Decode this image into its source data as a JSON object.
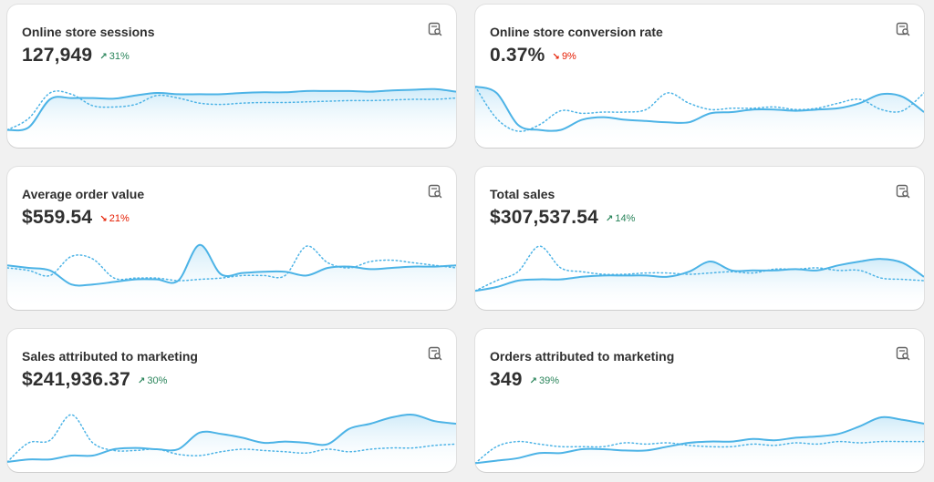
{
  "colors": {
    "line": "#4cb3e6",
    "fill_top": "#cbe9f8",
    "dotted": "#4cb3e6",
    "up": "#29845a",
    "down": "#e51c00"
  },
  "cards": [
    {
      "title": "Online store sessions",
      "value": "127,949",
      "delta": "31%",
      "direction": "up",
      "icon": "report-magnify-icon",
      "current": [
        0.78,
        0.74,
        0.3,
        0.28,
        0.28,
        0.29,
        0.24,
        0.2,
        0.22,
        0.22,
        0.22,
        0.2,
        0.19,
        0.19,
        0.17,
        0.17,
        0.17,
        0.18,
        0.16,
        0.15,
        0.14,
        0.18
      ],
      "previous": [
        0.78,
        0.6,
        0.2,
        0.22,
        0.4,
        0.42,
        0.38,
        0.24,
        0.28,
        0.36,
        0.38,
        0.36,
        0.35,
        0.35,
        0.34,
        0.33,
        0.32,
        0.32,
        0.31,
        0.3,
        0.3,
        0.28
      ]
    },
    {
      "title": "Online store conversion rate",
      "value": "0.37%",
      "delta": "9%",
      "direction": "down",
      "icon": "report-magnify-icon",
      "current": [
        0.1,
        0.2,
        0.7,
        0.78,
        0.78,
        0.62,
        0.58,
        0.62,
        0.64,
        0.66,
        0.66,
        0.52,
        0.5,
        0.46,
        0.46,
        0.48,
        0.46,
        0.44,
        0.36,
        0.22,
        0.26,
        0.5
      ],
      "previous": [
        0.1,
        0.6,
        0.8,
        0.7,
        0.48,
        0.52,
        0.5,
        0.5,
        0.46,
        0.2,
        0.36,
        0.46,
        0.44,
        0.44,
        0.42,
        0.46,
        0.44,
        0.36,
        0.3,
        0.46,
        0.48,
        0.2
      ]
    },
    {
      "title": "Average order value",
      "value": "$559.54",
      "delta": "21%",
      "direction": "down",
      "icon": "report-magnify-icon",
      "current": [
        0.36,
        0.4,
        0.44,
        0.66,
        0.66,
        0.62,
        0.58,
        0.58,
        0.6,
        0.04,
        0.5,
        0.48,
        0.46,
        0.46,
        0.52,
        0.4,
        0.38,
        0.42,
        0.4,
        0.38,
        0.38,
        0.36
      ],
      "previous": [
        0.4,
        0.44,
        0.52,
        0.22,
        0.26,
        0.56,
        0.56,
        0.56,
        0.6,
        0.58,
        0.56,
        0.52,
        0.52,
        0.52,
        0.06,
        0.32,
        0.4,
        0.3,
        0.28,
        0.32,
        0.36,
        0.4
      ]
    },
    {
      "title": "Total sales",
      "value": "$307,537.54",
      "delta": "14%",
      "direction": "up",
      "icon": "report-magnify-icon",
      "current": [
        0.76,
        0.7,
        0.6,
        0.58,
        0.58,
        0.54,
        0.52,
        0.52,
        0.52,
        0.54,
        0.46,
        0.3,
        0.44,
        0.44,
        0.44,
        0.42,
        0.44,
        0.36,
        0.3,
        0.26,
        0.32,
        0.54
      ],
      "previous": [
        0.76,
        0.6,
        0.46,
        0.06,
        0.4,
        0.46,
        0.5,
        0.5,
        0.48,
        0.48,
        0.5,
        0.48,
        0.46,
        0.48,
        0.42,
        0.42,
        0.4,
        0.44,
        0.44,
        0.56,
        0.58,
        0.6
      ]
    },
    {
      "title": "Sales attributed to marketing",
      "value": "$241,936.37",
      "delta": "30%",
      "direction": "up",
      "icon": "report-magnify-icon",
      "current": [
        0.9,
        0.86,
        0.86,
        0.8,
        0.8,
        0.7,
        0.68,
        0.7,
        0.7,
        0.44,
        0.46,
        0.52,
        0.6,
        0.58,
        0.6,
        0.62,
        0.38,
        0.3,
        0.2,
        0.16,
        0.26,
        0.3
      ],
      "previous": [
        0.9,
        0.6,
        0.56,
        0.16,
        0.6,
        0.72,
        0.72,
        0.7,
        0.78,
        0.8,
        0.74,
        0.7,
        0.72,
        0.74,
        0.76,
        0.7,
        0.74,
        0.7,
        0.68,
        0.68,
        0.64,
        0.62
      ]
    },
    {
      "title": "Orders attributed to marketing",
      "value": "349",
      "delta": "39%",
      "direction": "up",
      "icon": "report-magnify-icon",
      "current": [
        0.92,
        0.88,
        0.84,
        0.76,
        0.76,
        0.7,
        0.7,
        0.72,
        0.72,
        0.66,
        0.6,
        0.58,
        0.58,
        0.54,
        0.56,
        0.52,
        0.5,
        0.46,
        0.34,
        0.2,
        0.24,
        0.3
      ],
      "previous": [
        0.92,
        0.66,
        0.58,
        0.62,
        0.66,
        0.66,
        0.66,
        0.6,
        0.62,
        0.6,
        0.64,
        0.66,
        0.66,
        0.62,
        0.64,
        0.6,
        0.62,
        0.58,
        0.6,
        0.58,
        0.58,
        0.58
      ]
    }
  ]
}
